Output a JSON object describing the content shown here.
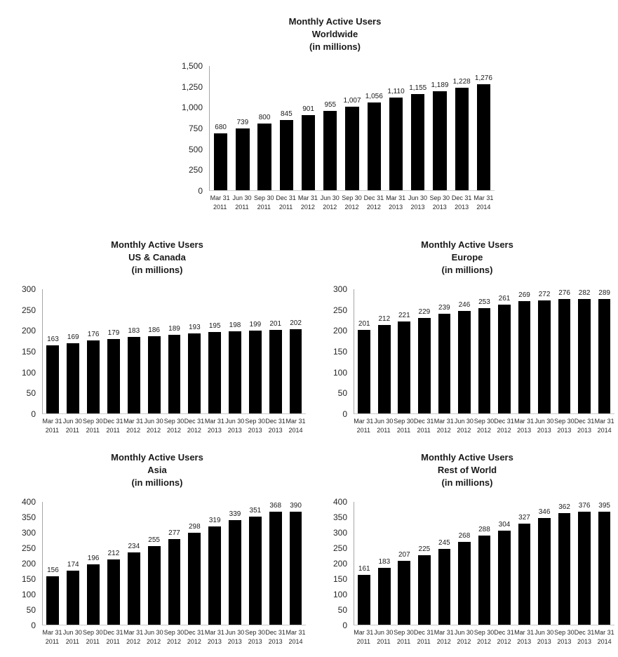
{
  "colors": {
    "bar": "#000000",
    "axis_line": "#a6a6a6",
    "baseline": "#c9c9c9",
    "text": "#1a1a1a"
  },
  "chart_data": [
    {
      "type": "bar",
      "region": "Worldwide",
      "title_lines": [
        "Monthly Active Users",
        "Worldwide",
        "(in millions)"
      ],
      "categories": [
        [
          "Mar 31",
          "2011"
        ],
        [
          "Jun 30",
          "2011"
        ],
        [
          "Sep 30",
          "2011"
        ],
        [
          "Dec 31",
          "2011"
        ],
        [
          "Mar 31",
          "2012"
        ],
        [
          "Jun 30",
          "2012"
        ],
        [
          "Sep 30",
          "2012"
        ],
        [
          "Dec 31",
          "2012"
        ],
        [
          "Mar 31",
          "2013"
        ],
        [
          "Jun 30",
          "2013"
        ],
        [
          "Sep 30",
          "2013"
        ],
        [
          "Dec 31",
          "2013"
        ],
        [
          "Mar 31",
          "2014"
        ]
      ],
      "values": [
        680,
        739,
        800,
        845,
        901,
        955,
        1007,
        1056,
        1110,
        1155,
        1189,
        1228,
        1276
      ],
      "ylim": [
        0,
        1500
      ],
      "yticks": [
        0,
        250,
        500,
        750,
        1000,
        1250,
        1500
      ],
      "grid": false,
      "legend": null,
      "xlabel": "",
      "ylabel": ""
    },
    {
      "type": "bar",
      "region": "US & Canada",
      "title_lines": [
        "Monthly Active Users",
        "US & Canada",
        "(in millions)"
      ],
      "categories": [
        [
          "Mar 31",
          "2011"
        ],
        [
          "Jun 30",
          "2011"
        ],
        [
          "Sep 30",
          "2011"
        ],
        [
          "Dec 31",
          "2011"
        ],
        [
          "Mar 31",
          "2012"
        ],
        [
          "Jun 30",
          "2012"
        ],
        [
          "Sep 30",
          "2012"
        ],
        [
          "Dec 31",
          "2012"
        ],
        [
          "Mar 31",
          "2013"
        ],
        [
          "Jun 30",
          "2013"
        ],
        [
          "Sep 30",
          "2013"
        ],
        [
          "Dec 31",
          "2013"
        ],
        [
          "Mar 31",
          "2014"
        ]
      ],
      "values": [
        163,
        169,
        176,
        179,
        183,
        186,
        189,
        193,
        195,
        198,
        199,
        201,
        202
      ],
      "ylim": [
        0,
        300
      ],
      "yticks": [
        0,
        50,
        100,
        150,
        200,
        250,
        300
      ],
      "grid": false,
      "legend": null,
      "xlabel": "",
      "ylabel": ""
    },
    {
      "type": "bar",
      "region": "Europe",
      "title_lines": [
        "Monthly Active Users",
        "Europe",
        "(in millions)"
      ],
      "categories": [
        [
          "Mar 31",
          "2011"
        ],
        [
          "Jun 30",
          "2011"
        ],
        [
          "Sep 30",
          "2011"
        ],
        [
          "Dec 31",
          "2011"
        ],
        [
          "Mar 31",
          "2012"
        ],
        [
          "Jun 30",
          "2012"
        ],
        [
          "Sep 30",
          "2012"
        ],
        [
          "Dec 31",
          "2012"
        ],
        [
          "Mar 31",
          "2013"
        ],
        [
          "Jun 30",
          "2013"
        ],
        [
          "Sep 30",
          "2013"
        ],
        [
          "Dec 31",
          "2013"
        ],
        [
          "Mar 31",
          "2014"
        ]
      ],
      "values": [
        201,
        212,
        221,
        229,
        239,
        246,
        253,
        261,
        269,
        272,
        276,
        282,
        289
      ],
      "ylim": [
        0,
        300
      ],
      "yticks": [
        0,
        50,
        100,
        150,
        200,
        250,
        300
      ],
      "grid": false,
      "legend": null,
      "xlabel": "",
      "ylabel": ""
    },
    {
      "type": "bar",
      "region": "Asia",
      "title_lines": [
        "Monthly Active Users",
        "Asia",
        "(in millions)"
      ],
      "categories": [
        [
          "Mar 31",
          "2011"
        ],
        [
          "Jun 30",
          "2011"
        ],
        [
          "Sep 30",
          "2011"
        ],
        [
          "Dec 31",
          "2011"
        ],
        [
          "Mar 31",
          "2012"
        ],
        [
          "Jun 30",
          "2012"
        ],
        [
          "Sep 30",
          "2012"
        ],
        [
          "Dec 31",
          "2012"
        ],
        [
          "Mar 31",
          "2013"
        ],
        [
          "Jun 30",
          "2013"
        ],
        [
          "Sep 30",
          "2013"
        ],
        [
          "Dec 31",
          "2013"
        ],
        [
          "Mar 31",
          "2014"
        ]
      ],
      "values": [
        156,
        174,
        196,
        212,
        234,
        255,
        277,
        298,
        319,
        339,
        351,
        368,
        390
      ],
      "ylim": [
        0,
        400
      ],
      "yticks": [
        0,
        50,
        100,
        150,
        200,
        250,
        300,
        350,
        400
      ],
      "grid": false,
      "legend": null,
      "xlabel": "",
      "ylabel": ""
    },
    {
      "type": "bar",
      "region": "Rest of World",
      "title_lines": [
        "Monthly Active Users",
        "Rest of World",
        "(in millions)"
      ],
      "categories": [
        [
          "Mar 31",
          "2011"
        ],
        [
          "Jun 30",
          "2011"
        ],
        [
          "Sep 30",
          "2011"
        ],
        [
          "Dec 31",
          "2011"
        ],
        [
          "Mar 31",
          "2012"
        ],
        [
          "Jun 30",
          "2012"
        ],
        [
          "Sep 30",
          "2012"
        ],
        [
          "Dec 31",
          "2012"
        ],
        [
          "Mar 31",
          "2013"
        ],
        [
          "Jun 30",
          "2013"
        ],
        [
          "Sep 30",
          "2013"
        ],
        [
          "Dec 31",
          "2013"
        ],
        [
          "Mar 31",
          "2014"
        ]
      ],
      "values": [
        161,
        183,
        207,
        225,
        245,
        268,
        288,
        304,
        327,
        346,
        362,
        376,
        395
      ],
      "ylim": [
        0,
        400
      ],
      "yticks": [
        0,
        50,
        100,
        150,
        200,
        250,
        300,
        350,
        400
      ],
      "grid": false,
      "legend": null,
      "xlabel": "",
      "ylabel": ""
    }
  ]
}
